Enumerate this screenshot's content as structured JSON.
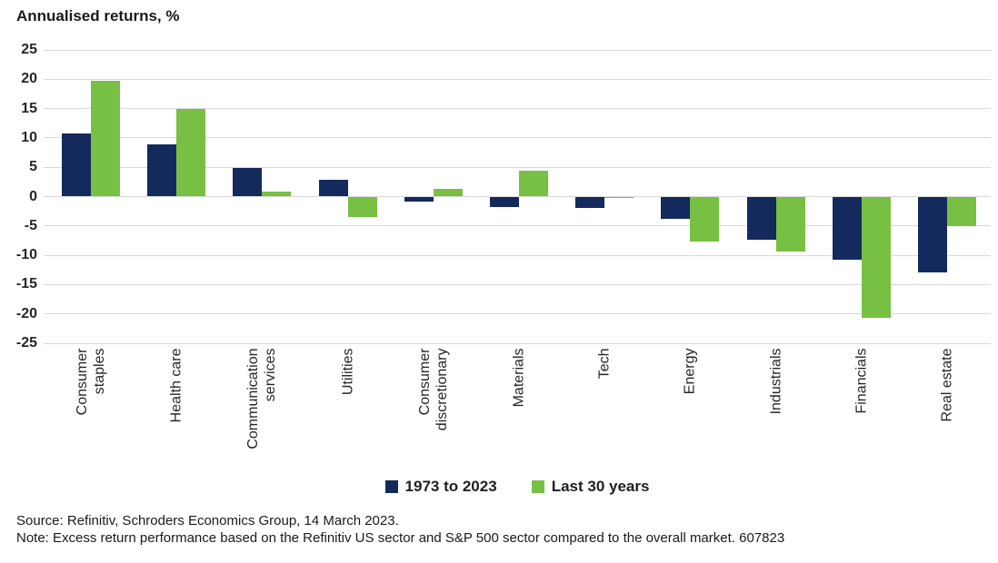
{
  "title": "Annualised returns, %",
  "chart_data": {
    "type": "bar",
    "title": "Annualised returns, %",
    "xlabel": "",
    "ylabel": "Annualised returns, %",
    "ylim": [
      -25,
      25
    ],
    "ytick_step": 5,
    "yticks": [
      25,
      20,
      15,
      10,
      5,
      0,
      -5,
      -10,
      -15,
      -20,
      -25
    ],
    "grid": true,
    "legend_position": "bottom-center",
    "categories": [
      "Consumer staples",
      "Health care",
      "Communication services",
      "Utilities",
      "Consumer discretionary",
      "Materials",
      "Tech",
      "Energy",
      "Industrials",
      "Financials",
      "Real estate"
    ],
    "series": [
      {
        "name": "1973 to 2023",
        "color": "#142a5c",
        "values": [
          10.7,
          8.9,
          4.9,
          2.8,
          -0.8,
          -1.8,
          -1.9,
          -3.8,
          -7.3,
          -10.7,
          -13.0
        ]
      },
      {
        "name": "Last 30 years",
        "color": "#77c043",
        "values": [
          19.7,
          15.0,
          0.9,
          -3.5,
          1.3,
          4.4,
          -0.3,
          -7.7,
          -9.4,
          -20.6,
          -5.0
        ]
      }
    ]
  },
  "footer": {
    "source": "Source: Refinitiv, Schroders Economics Group, 14 March 2023.",
    "note": "Note: Excess return performance based on the Refinitiv US sector and S&P 500 sector compared to the overall market. 607823"
  },
  "colors": {
    "series_1973_to_2023": "#142a5c",
    "series_last_30_years": "#77c043",
    "gridline": "#d9d9d9",
    "text": "#1a1a1a"
  }
}
